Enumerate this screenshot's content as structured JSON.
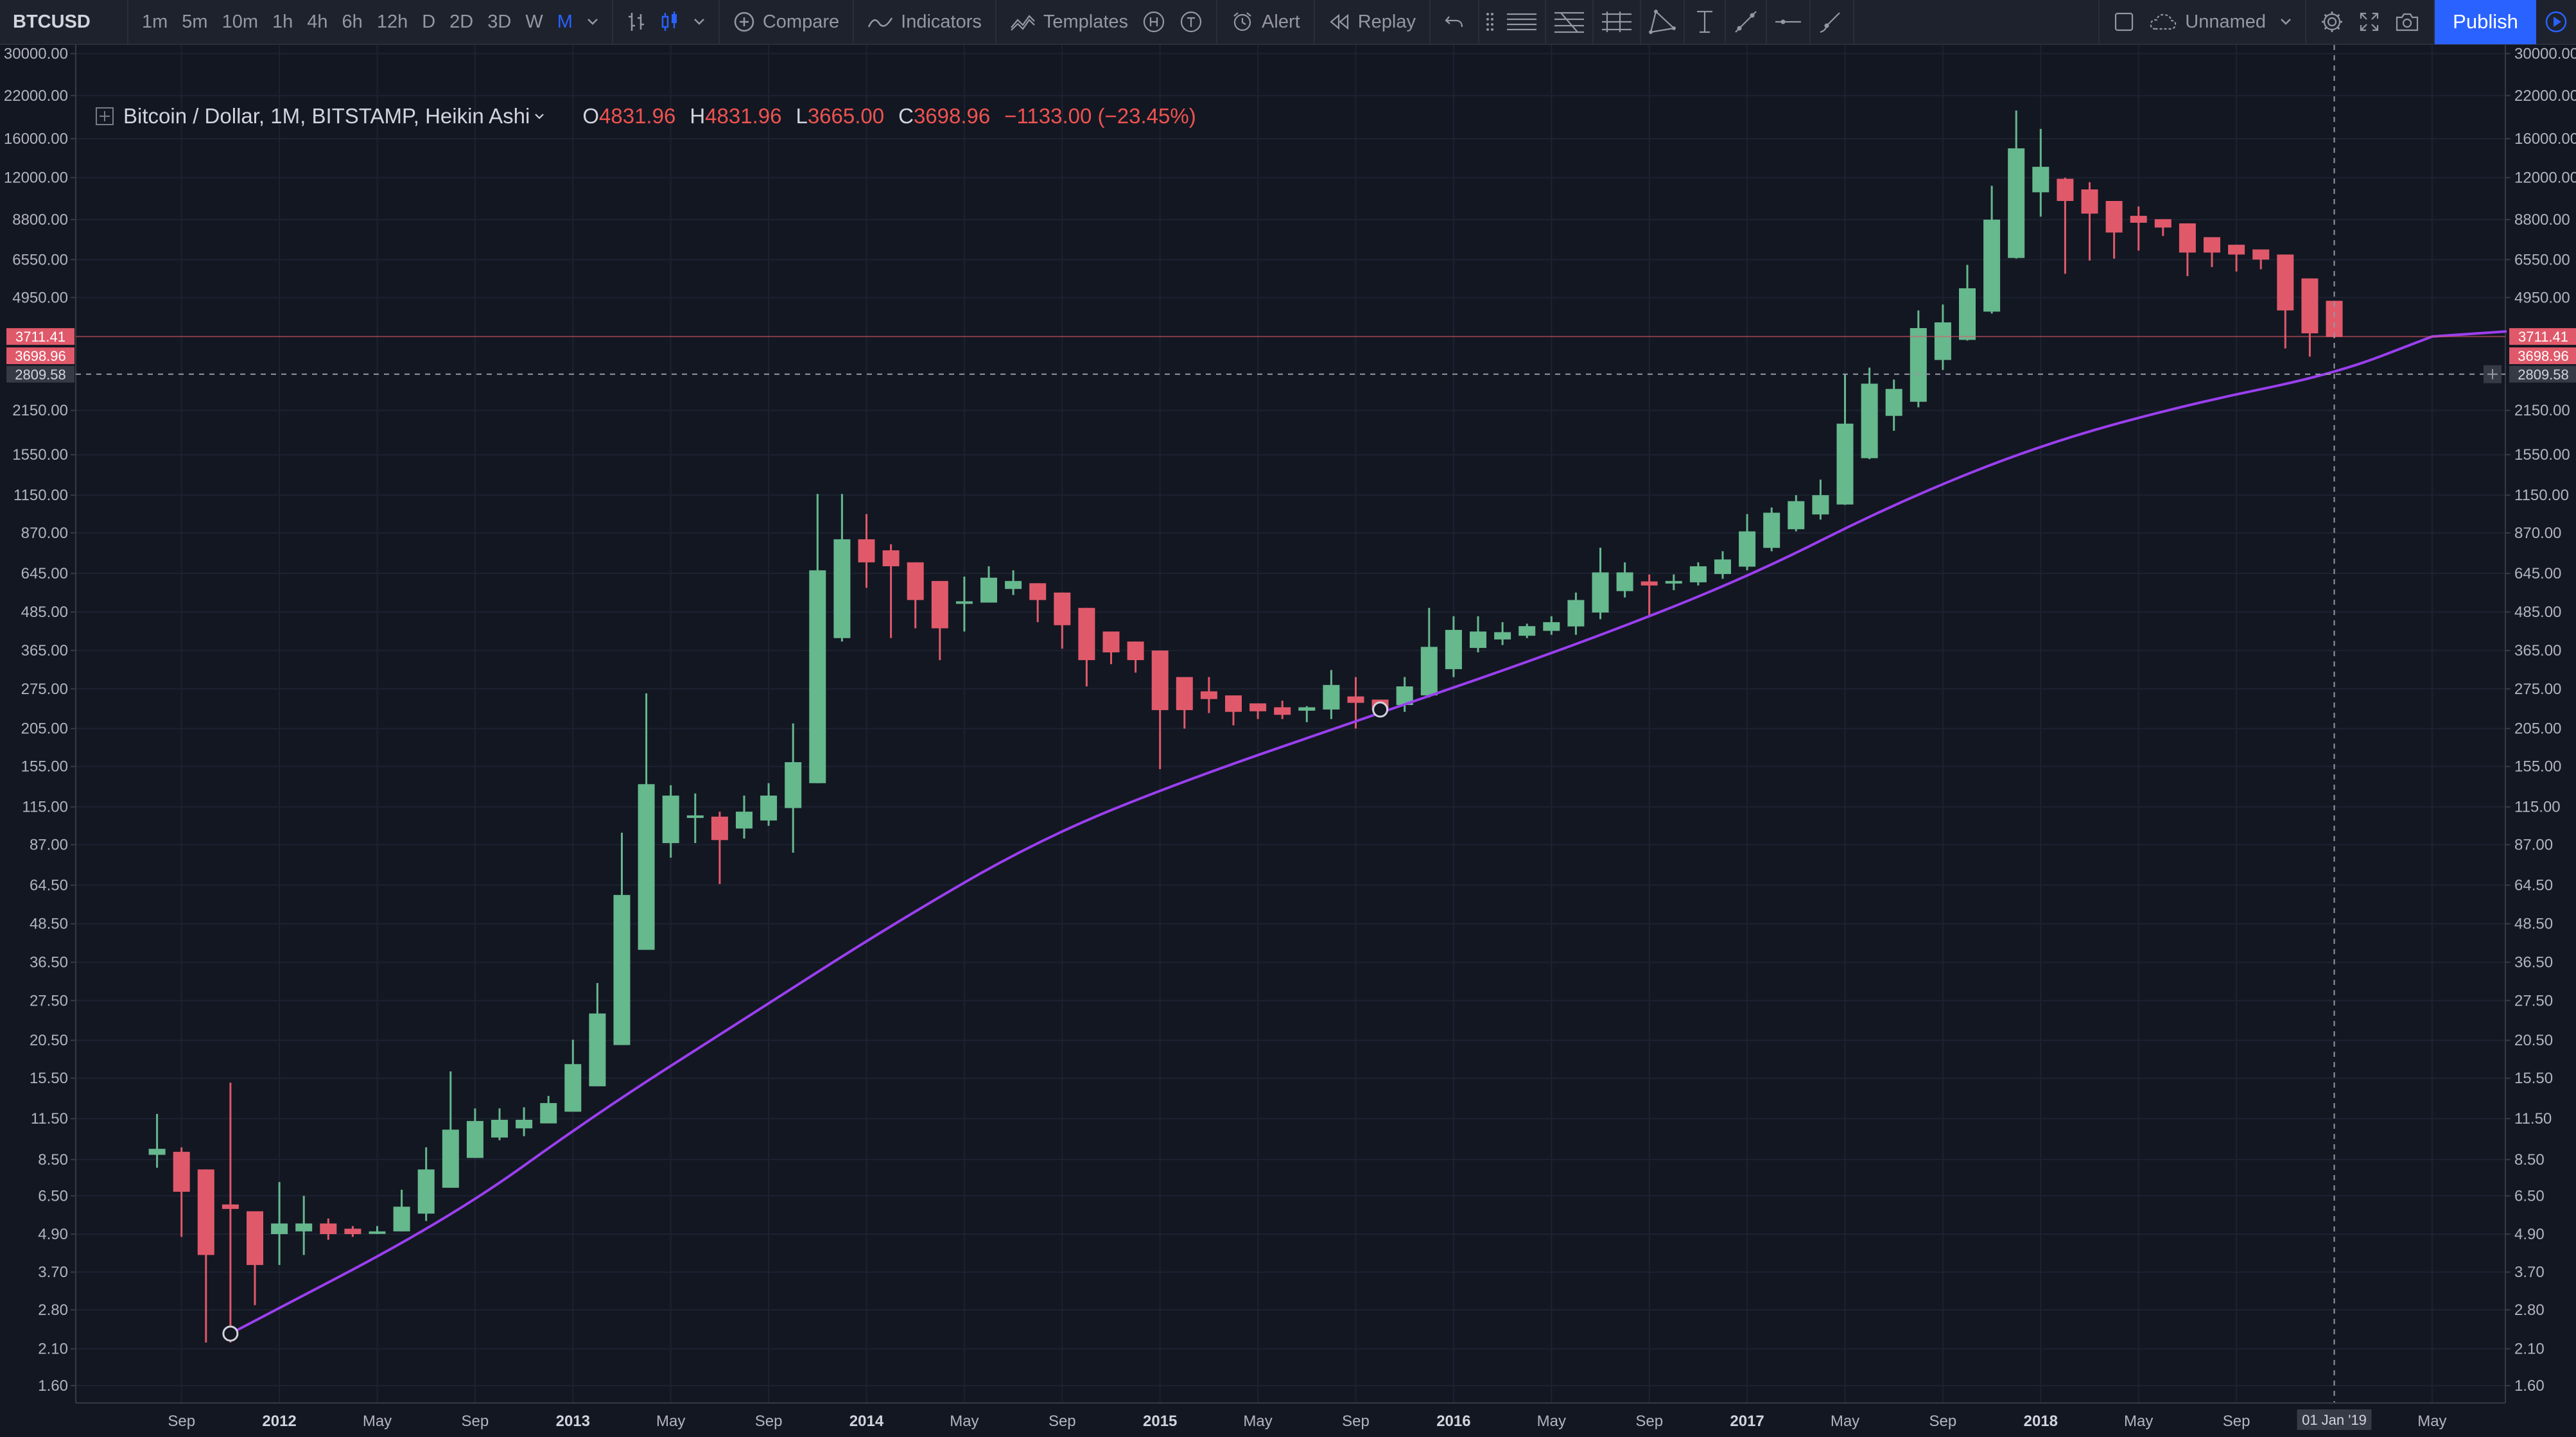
{
  "toolbar": {
    "symbol": "BTCUSD",
    "intervals": [
      "1m",
      "5m",
      "10m",
      "1h",
      "4h",
      "6h",
      "12h",
      "D",
      "2D",
      "3D",
      "W",
      "M"
    ],
    "active_interval": "M",
    "compare_label": "Compare",
    "indicators_label": "Indicators",
    "templates_label": "Templates",
    "alert_label": "Alert",
    "replay_label": "Replay",
    "layout_name": "Unnamed",
    "publish_label": "Publish",
    "colors": {
      "background": "#1e222d",
      "accent": "#2962ff",
      "icon": "#9598a1"
    }
  },
  "legend": {
    "symbol_title": "Bitcoin / Dollar, 1M, BITSTAMP, Heikin Ashi",
    "open_key": "O",
    "open": "4831.96",
    "high_key": "H",
    "high": "4831.96",
    "low_key": "L",
    "low": "3665.00",
    "close_key": "C",
    "close": "3698.96",
    "change": "−1133.00 (−23.45%)"
  },
  "price_labels": {
    "current_price": "3711.41",
    "last_close": "3698.96",
    "crosshair_price": "2809.58",
    "crosshair_date": "01 Jan '19"
  },
  "chart_data": {
    "type": "candlestick",
    "chart_style": "Heikin Ashi",
    "scale": "log",
    "y_ticks": [
      "30000.00",
      "22000.00",
      "16000.00",
      "12000.00",
      "8800.00",
      "6550.00",
      "4950.00",
      "2150.00",
      "1550.00",
      "1150.00",
      "870.00",
      "645.00",
      "485.00",
      "365.00",
      "275.00",
      "205.00",
      "155.00",
      "115.00",
      "87.00",
      "64.50",
      "48.50",
      "36.50",
      "27.50",
      "20.50",
      "15.50",
      "11.50",
      "8.50",
      "6.50",
      "4.90",
      "3.70",
      "2.80",
      "2.10",
      "1.60"
    ],
    "x_ticks": [
      {
        "label": "Sep",
        "year": false
      },
      {
        "label": "2012",
        "year": true
      },
      {
        "label": "May",
        "year": false
      },
      {
        "label": "Sep",
        "year": false
      },
      {
        "label": "2013",
        "year": true
      },
      {
        "label": "May",
        "year": false
      },
      {
        "label": "Sep",
        "year": false
      },
      {
        "label": "2014",
        "year": true
      },
      {
        "label": "May",
        "year": false
      },
      {
        "label": "Sep",
        "year": false
      },
      {
        "label": "2015",
        "year": true
      },
      {
        "label": "May",
        "year": false
      },
      {
        "label": "Sep",
        "year": false
      },
      {
        "label": "2016",
        "year": true
      },
      {
        "label": "May",
        "year": false
      },
      {
        "label": "Sep",
        "year": false
      },
      {
        "label": "2017",
        "year": true
      },
      {
        "label": "May",
        "year": false
      },
      {
        "label": "Sep",
        "year": false
      },
      {
        "label": "2018",
        "year": true
      },
      {
        "label": "May",
        "year": false
      },
      {
        "label": "Sep",
        "year": false
      },
      {
        "label": "May",
        "year": false
      }
    ],
    "candles": [
      {
        "date": "2011-08",
        "o": 8.8,
        "h": 11.9,
        "l": 8.0,
        "c": 9.2
      },
      {
        "date": "2011-09",
        "o": 9.0,
        "h": 9.3,
        "l": 4.8,
        "c": 6.7
      },
      {
        "date": "2011-10",
        "o": 7.9,
        "h": 7.9,
        "l": 2.2,
        "c": 4.2
      },
      {
        "date": "2011-11",
        "o": 6.1,
        "h": 15.0,
        "l": 2.2,
        "c": 5.9
      },
      {
        "date": "2011-12",
        "o": 5.8,
        "h": 5.8,
        "l": 2.9,
        "c": 3.9
      },
      {
        "date": "2012-01",
        "o": 4.9,
        "h": 7.2,
        "l": 3.9,
        "c": 5.3
      },
      {
        "date": "2012-02",
        "o": 5.0,
        "h": 6.5,
        "l": 4.2,
        "c": 5.3
      },
      {
        "date": "2012-03",
        "o": 5.3,
        "h": 5.5,
        "l": 4.7,
        "c": 4.9
      },
      {
        "date": "2012-04",
        "o": 5.1,
        "h": 5.2,
        "l": 4.8,
        "c": 4.9
      },
      {
        "date": "2012-05",
        "o": 5.0,
        "h": 5.2,
        "l": 4.9,
        "c": 5.0
      },
      {
        "date": "2012-06",
        "o": 5.0,
        "h": 6.8,
        "l": 5.0,
        "c": 6.0
      },
      {
        "date": "2012-07",
        "o": 5.7,
        "h": 9.3,
        "l": 5.4,
        "c": 7.9
      },
      {
        "date": "2012-08",
        "o": 6.9,
        "h": 16.3,
        "l": 6.9,
        "c": 10.6
      },
      {
        "date": "2012-09",
        "o": 8.6,
        "h": 12.4,
        "l": 8.6,
        "c": 11.3
      },
      {
        "date": "2012-10",
        "o": 10.0,
        "h": 12.4,
        "l": 9.8,
        "c": 11.4
      },
      {
        "date": "2012-11",
        "o": 10.7,
        "h": 12.5,
        "l": 10.1,
        "c": 11.4
      },
      {
        "date": "2012-12",
        "o": 11.1,
        "h": 13.6,
        "l": 11.1,
        "c": 12.9
      },
      {
        "date": "2013-01",
        "o": 12.1,
        "h": 20.6,
        "l": 12.1,
        "c": 17.2
      },
      {
        "date": "2013-02",
        "o": 14.6,
        "h": 31.3,
        "l": 14.6,
        "c": 25.0
      },
      {
        "date": "2013-03",
        "o": 19.8,
        "h": 95.0,
        "l": 19.8,
        "c": 60.0
      },
      {
        "date": "2013-04",
        "o": 40.0,
        "h": 266.0,
        "l": 40.0,
        "c": 136.0
      },
      {
        "date": "2013-05",
        "o": 88.0,
        "h": 135.0,
        "l": 79.0,
        "c": 125.0
      },
      {
        "date": "2013-06",
        "o": 106.0,
        "h": 127.0,
        "l": 88.0,
        "c": 108.0
      },
      {
        "date": "2013-07",
        "o": 107.0,
        "h": 111.0,
        "l": 65.0,
        "c": 90.0
      },
      {
        "date": "2013-08",
        "o": 98.0,
        "h": 125.0,
        "l": 91.0,
        "c": 111.0
      },
      {
        "date": "2013-09",
        "o": 104.0,
        "h": 137.0,
        "l": 100.0,
        "c": 125.0
      },
      {
        "date": "2013-10",
        "o": 114.0,
        "h": 213.0,
        "l": 82.0,
        "c": 160.0
      },
      {
        "date": "2013-11",
        "o": 137.0,
        "h": 1160.0,
        "l": 137.0,
        "c": 660.0
      },
      {
        "date": "2013-12",
        "o": 400.0,
        "h": 1160.0,
        "l": 390.0,
        "c": 830.0
      },
      {
        "date": "2014-01",
        "o": 830.0,
        "h": 1000.0,
        "l": 580.0,
        "c": 700.0
      },
      {
        "date": "2014-02",
        "o": 765.0,
        "h": 800.0,
        "l": 400.0,
        "c": 680.0
      },
      {
        "date": "2014-03",
        "o": 700.0,
        "h": 700.0,
        "l": 430.0,
        "c": 530.0
      },
      {
        "date": "2014-04",
        "o": 610.0,
        "h": 610.0,
        "l": 340.0,
        "c": 430.0
      },
      {
        "date": "2014-05",
        "o": 520.0,
        "h": 630.0,
        "l": 420.0,
        "c": 525.0
      },
      {
        "date": "2014-06",
        "o": 520.0,
        "h": 680.0,
        "l": 520.0,
        "c": 625.0
      },
      {
        "date": "2014-07",
        "o": 575.0,
        "h": 660.0,
        "l": 550.0,
        "c": 610.0
      },
      {
        "date": "2014-08",
        "o": 600.0,
        "h": 600.0,
        "l": 450.0,
        "c": 530.0
      },
      {
        "date": "2014-09",
        "o": 560.0,
        "h": 560.0,
        "l": 370.0,
        "c": 440.0
      },
      {
        "date": "2014-10",
        "o": 500.0,
        "h": 500.0,
        "l": 280.0,
        "c": 340.0
      },
      {
        "date": "2014-11",
        "o": 420.0,
        "h": 420.0,
        "l": 330.0,
        "c": 360.0
      },
      {
        "date": "2014-12",
        "o": 390.0,
        "h": 390.0,
        "l": 310.0,
        "c": 340.0
      },
      {
        "date": "2015-01",
        "o": 365.0,
        "h": 365.0,
        "l": 152.0,
        "c": 235.0
      },
      {
        "date": "2015-02",
        "o": 300.0,
        "h": 300.0,
        "l": 205.0,
        "c": 235.0
      },
      {
        "date": "2015-03",
        "o": 270.0,
        "h": 300.0,
        "l": 230.0,
        "c": 255.0
      },
      {
        "date": "2015-04",
        "o": 262.0,
        "h": 262.0,
        "l": 210.0,
        "c": 232.0
      },
      {
        "date": "2015-05",
        "o": 247.0,
        "h": 247.0,
        "l": 220.0,
        "c": 233.0
      },
      {
        "date": "2015-06",
        "o": 240.0,
        "h": 252.0,
        "l": 220.0,
        "c": 227.0
      },
      {
        "date": "2015-07",
        "o": 234.0,
        "h": 242.0,
        "l": 215.0,
        "c": 240.0
      },
      {
        "date": "2015-08",
        "o": 236.0,
        "h": 316.0,
        "l": 220.0,
        "c": 283.0
      },
      {
        "date": "2015-09",
        "o": 260.0,
        "h": 300.0,
        "l": 205.0,
        "c": 248.0
      },
      {
        "date": "2015-10",
        "o": 254.0,
        "h": 254.0,
        "l": 225.0,
        "c": 235.0
      },
      {
        "date": "2015-11",
        "o": 244.0,
        "h": 300.0,
        "l": 232.0,
        "c": 280.0
      },
      {
        "date": "2015-12",
        "o": 262.0,
        "h": 500.0,
        "l": 258.0,
        "c": 375.0
      },
      {
        "date": "2016-01",
        "o": 318.0,
        "h": 470.0,
        "l": 300.0,
        "c": 425.0
      },
      {
        "date": "2016-02",
        "o": 372.0,
        "h": 470.0,
        "l": 360.0,
        "c": 420.0
      },
      {
        "date": "2016-03",
        "o": 396.0,
        "h": 450.0,
        "l": 380.0,
        "c": 418.0
      },
      {
        "date": "2016-04",
        "o": 407.0,
        "h": 445.0,
        "l": 400.0,
        "c": 437.0
      },
      {
        "date": "2016-05",
        "o": 422.0,
        "h": 470.0,
        "l": 410.0,
        "c": 450.0
      },
      {
        "date": "2016-06",
        "o": 436.0,
        "h": 560.0,
        "l": 410.0,
        "c": 530.0
      },
      {
        "date": "2016-07",
        "o": 483.0,
        "h": 780.0,
        "l": 460.0,
        "c": 650.0
      },
      {
        "date": "2016-08",
        "o": 566.0,
        "h": 700.0,
        "l": 540.0,
        "c": 650.0
      },
      {
        "date": "2016-09",
        "o": 608.0,
        "h": 640.0,
        "l": 470.0,
        "c": 590.0
      },
      {
        "date": "2016-10",
        "o": 599.0,
        "h": 640.0,
        "l": 570.0,
        "c": 610.0
      },
      {
        "date": "2016-11",
        "o": 604.0,
        "h": 700.0,
        "l": 590.0,
        "c": 680.0
      },
      {
        "date": "2016-12",
        "o": 642.0,
        "h": 760.0,
        "l": 620.0,
        "c": 715.0
      },
      {
        "date": "2017-01",
        "o": 678.0,
        "h": 1000.0,
        "l": 660.0,
        "c": 880.0
      },
      {
        "date": "2017-02",
        "o": 779.0,
        "h": 1050.0,
        "l": 760.0,
        "c": 1010.0
      },
      {
        "date": "2017-03",
        "o": 894.0,
        "h": 1150.0,
        "l": 880.0,
        "c": 1100.0
      },
      {
        "date": "2017-04",
        "o": 997.0,
        "h": 1290.0,
        "l": 960.0,
        "c": 1150.0
      },
      {
        "date": "2017-05",
        "o": 1073.0,
        "h": 2800.0,
        "l": 1070.0,
        "c": 1950.0
      },
      {
        "date": "2017-06",
        "o": 1511.0,
        "h": 2950.0,
        "l": 1500.0,
        "c": 2620.0
      },
      {
        "date": "2017-07",
        "o": 2065.0,
        "h": 2700.0,
        "l": 1850.0,
        "c": 2520.0
      },
      {
        "date": "2017-08",
        "o": 2292.0,
        "h": 4500.0,
        "l": 2200.0,
        "c": 3950.0
      },
      {
        "date": "2017-09",
        "o": 3121.0,
        "h": 4700.0,
        "l": 2900.0,
        "c": 4120.0
      },
      {
        "date": "2017-10",
        "o": 3620.0,
        "h": 6300.0,
        "l": 3600.0,
        "c": 5300.0
      },
      {
        "date": "2017-11",
        "o": 4460.0,
        "h": 11300.0,
        "l": 4400.0,
        "c": 8800.0
      },
      {
        "date": "2017-12",
        "o": 6630.0,
        "h": 19700.0,
        "l": 6600.0,
        "c": 14900.0
      },
      {
        "date": "2018-01",
        "o": 10770.0,
        "h": 17200.0,
        "l": 9000.0,
        "c": 13000.0
      },
      {
        "date": "2018-02",
        "o": 11900.0,
        "h": 12000.0,
        "l": 5900.0,
        "c": 10100.0
      },
      {
        "date": "2018-03",
        "o": 11000.0,
        "h": 11600.0,
        "l": 6500.0,
        "c": 9200.0
      },
      {
        "date": "2018-04",
        "o": 10100.0,
        "h": 10100.0,
        "l": 6600.0,
        "c": 8000.0
      },
      {
        "date": "2018-05",
        "o": 9050.0,
        "h": 9700.0,
        "l": 7000.0,
        "c": 8600.0
      },
      {
        "date": "2018-06",
        "o": 8830.0,
        "h": 8830.0,
        "l": 7800.0,
        "c": 8300.0
      },
      {
        "date": "2018-07",
        "o": 8560.0,
        "h": 8560.0,
        "l": 5800.0,
        "c": 6900.0
      },
      {
        "date": "2018-08",
        "o": 7730.0,
        "h": 7730.0,
        "l": 6200.0,
        "c": 6900.0
      },
      {
        "date": "2018-09",
        "o": 7310.0,
        "h": 7310.0,
        "l": 6000.0,
        "c": 6800.0
      },
      {
        "date": "2018-10",
        "o": 7060.0,
        "h": 7060.0,
        "l": 6100.0,
        "c": 6550.0
      },
      {
        "date": "2018-11",
        "o": 6800.0,
        "h": 6800.0,
        "l": 3400.0,
        "c": 4500.0
      },
      {
        "date": "2018-12",
        "o": 5700.0,
        "h": 5700.0,
        "l": 3200.0,
        "c": 3800.0
      },
      {
        "date": "2019-01",
        "o": 4831.96,
        "h": 4831.96,
        "l": 3665.0,
        "c": 3698.96
      }
    ],
    "trendline": {
      "points": [
        {
          "date": "2011-11",
          "price": 2.35
        },
        {
          "date": "2012-08",
          "price": 5.5
        },
        {
          "date": "2013-02",
          "price": 12.0
        },
        {
          "date": "2013-08",
          "price": 24.0
        },
        {
          "date": "2014-02",
          "price": 48.0
        },
        {
          "date": "2014-08",
          "price": 90.0
        },
        {
          "date": "2015-02",
          "price": 140.0
        },
        {
          "date": "2015-10",
          "price": 230.0
        },
        {
          "date": "2016-06",
          "price": 380.0
        },
        {
          "date": "2017-01",
          "price": 625.0
        },
        {
          "date": "2017-07",
          "price": 1080.0
        },
        {
          "date": "2018-01",
          "price": 1670.0
        },
        {
          "date": "2018-07",
          "price": 2250.0
        },
        {
          "date": "2019-01",
          "price": 2810.0
        },
        {
          "date": "2019-05",
          "price": 3711.41
        }
      ],
      "color": "#9b3ff0"
    },
    "colors": {
      "up": "#66b88d",
      "down": "#e0596a",
      "grid": "#1d2231"
    }
  }
}
